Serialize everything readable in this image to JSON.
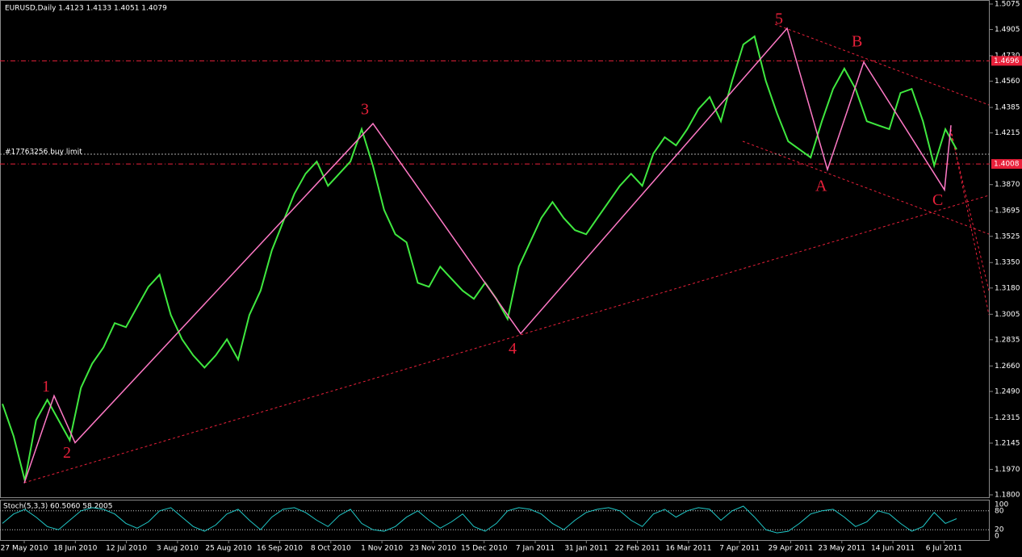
{
  "chart_data": {
    "type": "line",
    "title": "EURUSD,Daily  1.4123 1.4133 1.4051 1.4079",
    "series": [
      {
        "name": "EURUSD",
        "color": "#3fe83f",
        "values": [
          1.2407,
          1.2191,
          1.1895,
          1.2299,
          1.2434,
          1.2299,
          1.2164,
          1.2515,
          1.2676,
          1.2784,
          1.2946,
          1.2919,
          1.3054,
          1.3188,
          1.3269,
          1.3,
          1.2838,
          1.273,
          1.2649,
          1.273,
          1.2838,
          1.2703,
          1.3,
          1.3162,
          1.3431,
          1.362,
          1.3808,
          1.3943,
          1.4024,
          1.3862,
          1.3943,
          1.4024,
          1.424,
          1.3997,
          1.3701,
          1.3539,
          1.3485,
          1.3215,
          1.3188,
          1.3323,
          1.3242,
          1.3162,
          1.3108,
          1.3215,
          1.3108,
          1.2973,
          1.3323,
          1.3485,
          1.3647,
          1.3754,
          1.3647,
          1.3566,
          1.3539,
          1.3647,
          1.3754,
          1.3862,
          1.3943,
          1.3862,
          1.4078,
          1.4186,
          1.4132,
          1.424,
          1.4374,
          1.4455,
          1.4293,
          1.4563,
          1.4805,
          1.4859,
          1.4563,
          1.4347,
          1.4159,
          1.4105,
          1.4051,
          1.4293,
          1.4509,
          1.4644,
          1.4509,
          1.4293,
          1.4266,
          1.424,
          1.4482,
          1.4509,
          1.4293,
          1.3997,
          1.424,
          1.4105
        ]
      }
    ],
    "ylim": [
      1.18,
      1.5075
    ],
    "yticks": [
      1.5075,
      1.4905,
      {
        "value": 1.473,
        "label": "1.4730"
      },
      {
        "value": 1.456,
        "label": "1.4560"
      },
      1.4385,
      1.4215,
      {
        "value": 1.387,
        "label": "1.3870"
      },
      1.3695,
      1.3525,
      {
        "value": 1.335,
        "label": "1.3350"
      },
      {
        "value": 1.318,
        "label": "1.3180"
      },
      1.3005,
      1.2835,
      {
        "value": 1.266,
        "label": "1.2660"
      },
      {
        "value": 1.249,
        "label": "1.2490"
      },
      1.2315,
      1.2145,
      {
        "value": 1.197,
        "label": "1.1970"
      },
      {
        "value": 1.18,
        "label": "1.1800"
      }
    ],
    "x_labels": [
      "27 May 2010",
      "18 Jun 2010",
      "12 Jul 2010",
      "3 Aug 2010",
      "25 Aug 2010",
      "16 Sep 2010",
      "8 Oct 2010",
      "1 Nov 2010",
      "23 Nov 2010",
      "15 Dec 2010",
      "7 Jan 2011",
      "31 Jan 2011",
      "22 Feb 2011",
      "16 Mar 2011",
      "7 Apr 2011",
      "29 Apr 2011",
      "23 May 2011",
      "14 Jun 2011",
      "6 Jul 2011"
    ],
    "levels": [
      {
        "value": 1.4696,
        "label": "1.4696"
      },
      {
        "value": 1.4008,
        "label": "1.4008"
      }
    ],
    "order_line": {
      "value": 1.4073,
      "label": "#17763256 buy limit"
    },
    "waves": {
      "labels": [
        "1",
        "2",
        "3",
        "4",
        "5",
        "A",
        "B",
        "C"
      ],
      "values": [
        1.2461,
        1.2148,
        1.4277,
        1.2876,
        1.4913,
        1.397,
        1.4687,
        1.3835
      ]
    },
    "stoch": {
      "title": "Stoch(5,3,3) 60.5060 58.2005",
      "color": "#20c8c8",
      "ylim": [
        0,
        100
      ],
      "yticks": [
        100,
        80,
        20,
        0
      ],
      "values": [
        40,
        70,
        85,
        60,
        30,
        20,
        50,
        80,
        90,
        85,
        70,
        40,
        25,
        45,
        80,
        90,
        60,
        30,
        15,
        35,
        70,
        85,
        50,
        20,
        60,
        85,
        90,
        75,
        50,
        30,
        65,
        85,
        40,
        20,
        15,
        30,
        60,
        80,
        50,
        25,
        45,
        70,
        30,
        15,
        40,
        80,
        90,
        85,
        70,
        40,
        20,
        50,
        75,
        85,
        90,
        80,
        50,
        30,
        70,
        85,
        60,
        80,
        90,
        85,
        50,
        80,
        95,
        60,
        20,
        10,
        15,
        40,
        70,
        80,
        85,
        60,
        30,
        45,
        80,
        70,
        40,
        15,
        30,
        75,
        40,
        55
      ]
    }
  }
}
